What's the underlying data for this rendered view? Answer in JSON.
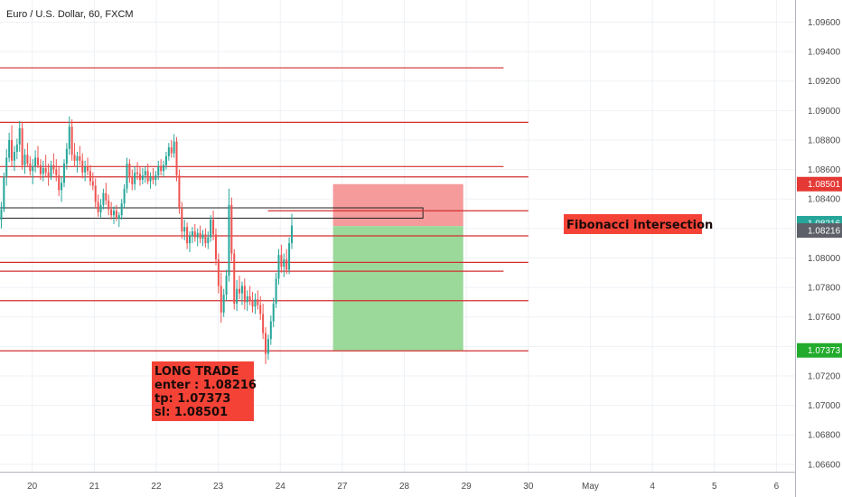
{
  "symbol": "Euro / U.S. Dollar, 60, FXCM",
  "colors": {
    "up": "#26a69a",
    "down": "#ef5350",
    "level": "#d32f2f",
    "stop_zone": "#f59b9b",
    "target_zone": "#9ad99a",
    "note_bg": "#f44336",
    "badge_red": "#e53935",
    "badge_green": "#22ab2c",
    "badge_gray": "#5d6068",
    "badge_teal": "#26a69a"
  },
  "notes": {
    "fib": "Fibonacci intersection",
    "trade": [
      "LONG TRADE",
      "enter : 1.08216",
      "tp: 1.07373",
      "sl: 1.08501"
    ]
  },
  "badges": [
    {
      "label": "1.08501",
      "value": 1.08501,
      "color": "#e53935"
    },
    {
      "label": "1.08216",
      "value": 1.08236,
      "color": "#26a69a"
    },
    {
      "label": "1.08216",
      "value": 1.08186,
      "color": "#5d6068"
    },
    {
      "label": "1.07373",
      "value": 1.07373,
      "color": "#22ab2c"
    }
  ],
  "chart_data": {
    "type": "candlestick",
    "title": "Euro / U.S. Dollar, 60, FXCM",
    "x_ticks": [
      {
        "label": "20",
        "day": 0
      },
      {
        "label": "21",
        "day": 1
      },
      {
        "label": "22",
        "day": 2
      },
      {
        "label": "23",
        "day": 3
      },
      {
        "label": "24",
        "day": 4
      },
      {
        "label": "27",
        "day": 5
      },
      {
        "label": "28",
        "day": 6
      },
      {
        "label": "29",
        "day": 7
      },
      {
        "label": "30",
        "day": 8
      },
      {
        "label": "May",
        "day": 9
      },
      {
        "label": "4",
        "day": 10
      },
      {
        "label": "5",
        "day": 11
      },
      {
        "label": "6",
        "day": 12
      }
    ],
    "y_ticks": [
      "1.09600",
      "1.09400",
      "1.09200",
      "1.09000",
      "1.08800",
      "1.08600",
      "1.08400",
      "1.08200",
      "1.08000",
      "1.07800",
      "1.07600",
      "1.07400",
      "1.07200",
      "1.07000",
      "1.06800",
      "1.06600"
    ],
    "ylim": [
      1.0655,
      1.0975
    ],
    "xlim": [
      -0.52,
      12.3
    ],
    "levels": [
      {
        "price": 1.0929,
        "from": -0.6,
        "to": 7.6
      },
      {
        "price": 1.0892,
        "from": -0.6,
        "to": 8.0
      },
      {
        "price": 1.0862,
        "from": -0.6,
        "to": 7.6
      },
      {
        "price": 1.0855,
        "from": -0.6,
        "to": 8.0
      },
      {
        "price": 1.0832,
        "from": 3.8,
        "to": 8.0
      },
      {
        "price": 1.0815,
        "from": -0.6,
        "to": 8.0
      },
      {
        "price": 1.0797,
        "from": -0.6,
        "to": 8.0
      },
      {
        "price": 1.0791,
        "from": -0.6,
        "to": 7.6
      },
      {
        "price": 1.0771,
        "from": -0.6,
        "to": 8.0
      },
      {
        "price": 1.0737,
        "from": -0.6,
        "to": 8.0
      }
    ],
    "zone": {
      "from": 2.0,
      "to": 2.0
    },
    "position": {
      "x_from": 4.85,
      "x_to": 6.95,
      "entry": 1.08216,
      "tp": 1.07373,
      "sl": 1.08501
    },
    "fib_zone": {
      "x_from": -0.55,
      "x_to": 6.3,
      "top": 1.0834,
      "bottom": 1.0827
    },
    "candles_start_day": -0.52,
    "candles_step_day": 0.0422,
    "candles": [
      [
        1.0826,
        1.0838,
        1.082,
        1.0833
      ],
      [
        1.0833,
        1.0858,
        1.0831,
        1.0855
      ],
      [
        1.0855,
        1.0874,
        1.0849,
        1.0868
      ],
      [
        1.0868,
        1.0885,
        1.0865,
        1.088
      ],
      [
        1.088,
        1.089,
        1.0862,
        1.0866
      ],
      [
        1.0866,
        1.0876,
        1.0859,
        1.0872
      ],
      [
        1.0872,
        1.0881,
        1.0867,
        1.0877
      ],
      [
        1.0877,
        1.0893,
        1.0872,
        1.0888
      ],
      [
        1.0888,
        1.0892,
        1.086,
        1.0863
      ],
      [
        1.0863,
        1.0874,
        1.0857,
        1.087
      ],
      [
        1.087,
        1.0878,
        1.0862,
        1.0864
      ],
      [
        1.0864,
        1.0869,
        1.0856,
        1.0859
      ],
      [
        1.0859,
        1.0867,
        1.085,
        1.0862
      ],
      [
        1.0862,
        1.0873,
        1.0858,
        1.0868
      ],
      [
        1.0868,
        1.0876,
        1.0861,
        1.0863
      ],
      [
        1.0863,
        1.0867,
        1.0853,
        1.0857
      ],
      [
        1.0857,
        1.0866,
        1.0852,
        1.0861
      ],
      [
        1.0861,
        1.087,
        1.0855,
        1.0858
      ],
      [
        1.0858,
        1.0864,
        1.0849,
        1.0855
      ],
      [
        1.0855,
        1.0866,
        1.0853,
        1.0863
      ],
      [
        1.0863,
        1.0871,
        1.0857,
        1.086
      ],
      [
        1.086,
        1.0867,
        1.0852,
        1.0856
      ],
      [
        1.0856,
        1.0862,
        1.0842,
        1.0846
      ],
      [
        1.0846,
        1.0855,
        1.0838,
        1.0851
      ],
      [
        1.0851,
        1.0867,
        1.0848,
        1.0864
      ],
      [
        1.0864,
        1.0878,
        1.086,
        1.0874
      ],
      [
        1.0874,
        1.0896,
        1.087,
        1.0889
      ],
      [
        1.0889,
        1.0894,
        1.0866,
        1.087
      ],
      [
        1.087,
        1.0878,
        1.0862,
        1.0866
      ],
      [
        1.0866,
        1.0872,
        1.0858,
        1.0869
      ],
      [
        1.0869,
        1.0876,
        1.0863,
        1.0866
      ],
      [
        1.0866,
        1.0871,
        1.0854,
        1.0858
      ],
      [
        1.0858,
        1.0866,
        1.0852,
        1.0862
      ],
      [
        1.0862,
        1.0868,
        1.0856,
        1.0859
      ],
      [
        1.0859,
        1.0863,
        1.0849,
        1.0852
      ],
      [
        1.0852,
        1.0858,
        1.0846,
        1.0849
      ],
      [
        1.0849,
        1.0854,
        1.0834,
        1.0838
      ],
      [
        1.0838,
        1.0843,
        1.0828,
        1.0831
      ],
      [
        1.0831,
        1.084,
        1.0827,
        1.0836
      ],
      [
        1.0836,
        1.0847,
        1.0833,
        1.0844
      ],
      [
        1.0844,
        1.0851,
        1.0836,
        1.0839
      ],
      [
        1.0839,
        1.0843,
        1.0829,
        1.0833
      ],
      [
        1.0833,
        1.0838,
        1.0826,
        1.0829
      ],
      [
        1.0829,
        1.0835,
        1.0823,
        1.0832
      ],
      [
        1.0832,
        1.0836,
        1.0825,
        1.0827
      ],
      [
        1.0827,
        1.0831,
        1.0821,
        1.0829
      ],
      [
        1.0829,
        1.084,
        1.0826,
        1.0837
      ],
      [
        1.0837,
        1.085,
        1.0834,
        1.0847
      ],
      [
        1.0847,
        1.0868,
        1.0844,
        1.0864
      ],
      [
        1.0864,
        1.0867,
        1.0851,
        1.0855
      ],
      [
        1.0855,
        1.086,
        1.0846,
        1.085
      ],
      [
        1.085,
        1.0862,
        1.0846,
        1.0858
      ],
      [
        1.0858,
        1.0865,
        1.0853,
        1.0857
      ],
      [
        1.0857,
        1.0862,
        1.0849,
        1.0853
      ],
      [
        1.0853,
        1.0861,
        1.085,
        1.0856
      ],
      [
        1.0856,
        1.0862,
        1.0851,
        1.0859
      ],
      [
        1.0859,
        1.0864,
        1.085,
        1.0852
      ],
      [
        1.0852,
        1.0858,
        1.0847,
        1.0855
      ],
      [
        1.0855,
        1.0861,
        1.085,
        1.0853
      ],
      [
        1.0853,
        1.0859,
        1.0849,
        1.0856
      ],
      [
        1.0856,
        1.0866,
        1.0853,
        1.0862
      ],
      [
        1.0862,
        1.0867,
        1.0856,
        1.0859
      ],
      [
        1.0859,
        1.0866,
        1.0855,
        1.0863
      ],
      [
        1.0863,
        1.0872,
        1.086,
        1.0869
      ],
      [
        1.0869,
        1.0878,
        1.0866,
        1.0875
      ],
      [
        1.0875,
        1.088,
        1.0868,
        1.0871
      ],
      [
        1.0871,
        1.0884,
        1.0868,
        1.0879
      ],
      [
        1.0879,
        1.0882,
        1.0852,
        1.0856
      ],
      [
        1.0856,
        1.086,
        1.083,
        1.0834
      ],
      [
        1.0834,
        1.0838,
        1.0813,
        1.0818
      ],
      [
        1.0818,
        1.0826,
        1.0812,
        1.0821
      ],
      [
        1.0821,
        1.0824,
        1.0806,
        1.081
      ],
      [
        1.081,
        1.0818,
        1.0804,
        1.0815
      ],
      [
        1.0815,
        1.0821,
        1.081,
        1.0818
      ],
      [
        1.0818,
        1.0823,
        1.0811,
        1.0814
      ],
      [
        1.0814,
        1.082,
        1.0808,
        1.0817
      ],
      [
        1.0817,
        1.0822,
        1.081,
        1.0813
      ],
      [
        1.0813,
        1.0819,
        1.0808,
        1.0816
      ],
      [
        1.0816,
        1.082,
        1.0807,
        1.081
      ],
      [
        1.081,
        1.0818,
        1.0806,
        1.0814
      ],
      [
        1.0814,
        1.0829,
        1.0811,
        1.0826
      ],
      [
        1.0826,
        1.0832,
        1.0812,
        1.0816
      ],
      [
        1.0816,
        1.082,
        1.0795,
        1.0799
      ],
      [
        1.0799,
        1.0803,
        1.0776,
        1.0781
      ],
      [
        1.0781,
        1.079,
        1.0756,
        1.0763
      ],
      [
        1.0763,
        1.0779,
        1.076,
        1.0775
      ],
      [
        1.0775,
        1.0792,
        1.0771,
        1.0788
      ],
      [
        1.0788,
        1.0847,
        1.0784,
        1.0836
      ],
      [
        1.0836,
        1.0841,
        1.0798,
        1.0803
      ],
      [
        1.0803,
        1.0806,
        1.0765,
        1.0769
      ],
      [
        1.0769,
        1.0785,
        1.0764,
        1.0779
      ],
      [
        1.0779,
        1.0788,
        1.0772,
        1.0776
      ],
      [
        1.0776,
        1.0784,
        1.0768,
        1.0781
      ],
      [
        1.0781,
        1.0786,
        1.0765,
        1.077
      ],
      [
        1.077,
        1.0778,
        1.0764,
        1.0774
      ],
      [
        1.0774,
        1.0781,
        1.0768,
        1.0771
      ],
      [
        1.0771,
        1.0777,
        1.0763,
        1.0767
      ],
      [
        1.0767,
        1.0776,
        1.0762,
        1.0772
      ],
      [
        1.0772,
        1.0778,
        1.0765,
        1.0768
      ],
      [
        1.0768,
        1.0774,
        1.0758,
        1.0762
      ],
      [
        1.0762,
        1.0769,
        1.0745,
        1.0749
      ],
      [
        1.0749,
        1.0753,
        1.0728,
        1.0735
      ],
      [
        1.0735,
        1.0748,
        1.0731,
        1.0745
      ],
      [
        1.0745,
        1.0761,
        1.0741,
        1.0757
      ],
      [
        1.0757,
        1.0773,
        1.0753,
        1.0769
      ],
      [
        1.0769,
        1.079,
        1.0766,
        1.0786
      ],
      [
        1.0786,
        1.0806,
        1.0782,
        1.0802
      ],
      [
        1.0802,
        1.0809,
        1.079,
        1.0794
      ],
      [
        1.0794,
        1.0803,
        1.0787,
        1.0799
      ],
      [
        1.0799,
        1.0806,
        1.0789,
        1.0792
      ],
      [
        1.0792,
        1.0814,
        1.0789,
        1.081
      ],
      [
        1.081,
        1.083,
        1.0806,
        1.0822
      ]
    ]
  }
}
